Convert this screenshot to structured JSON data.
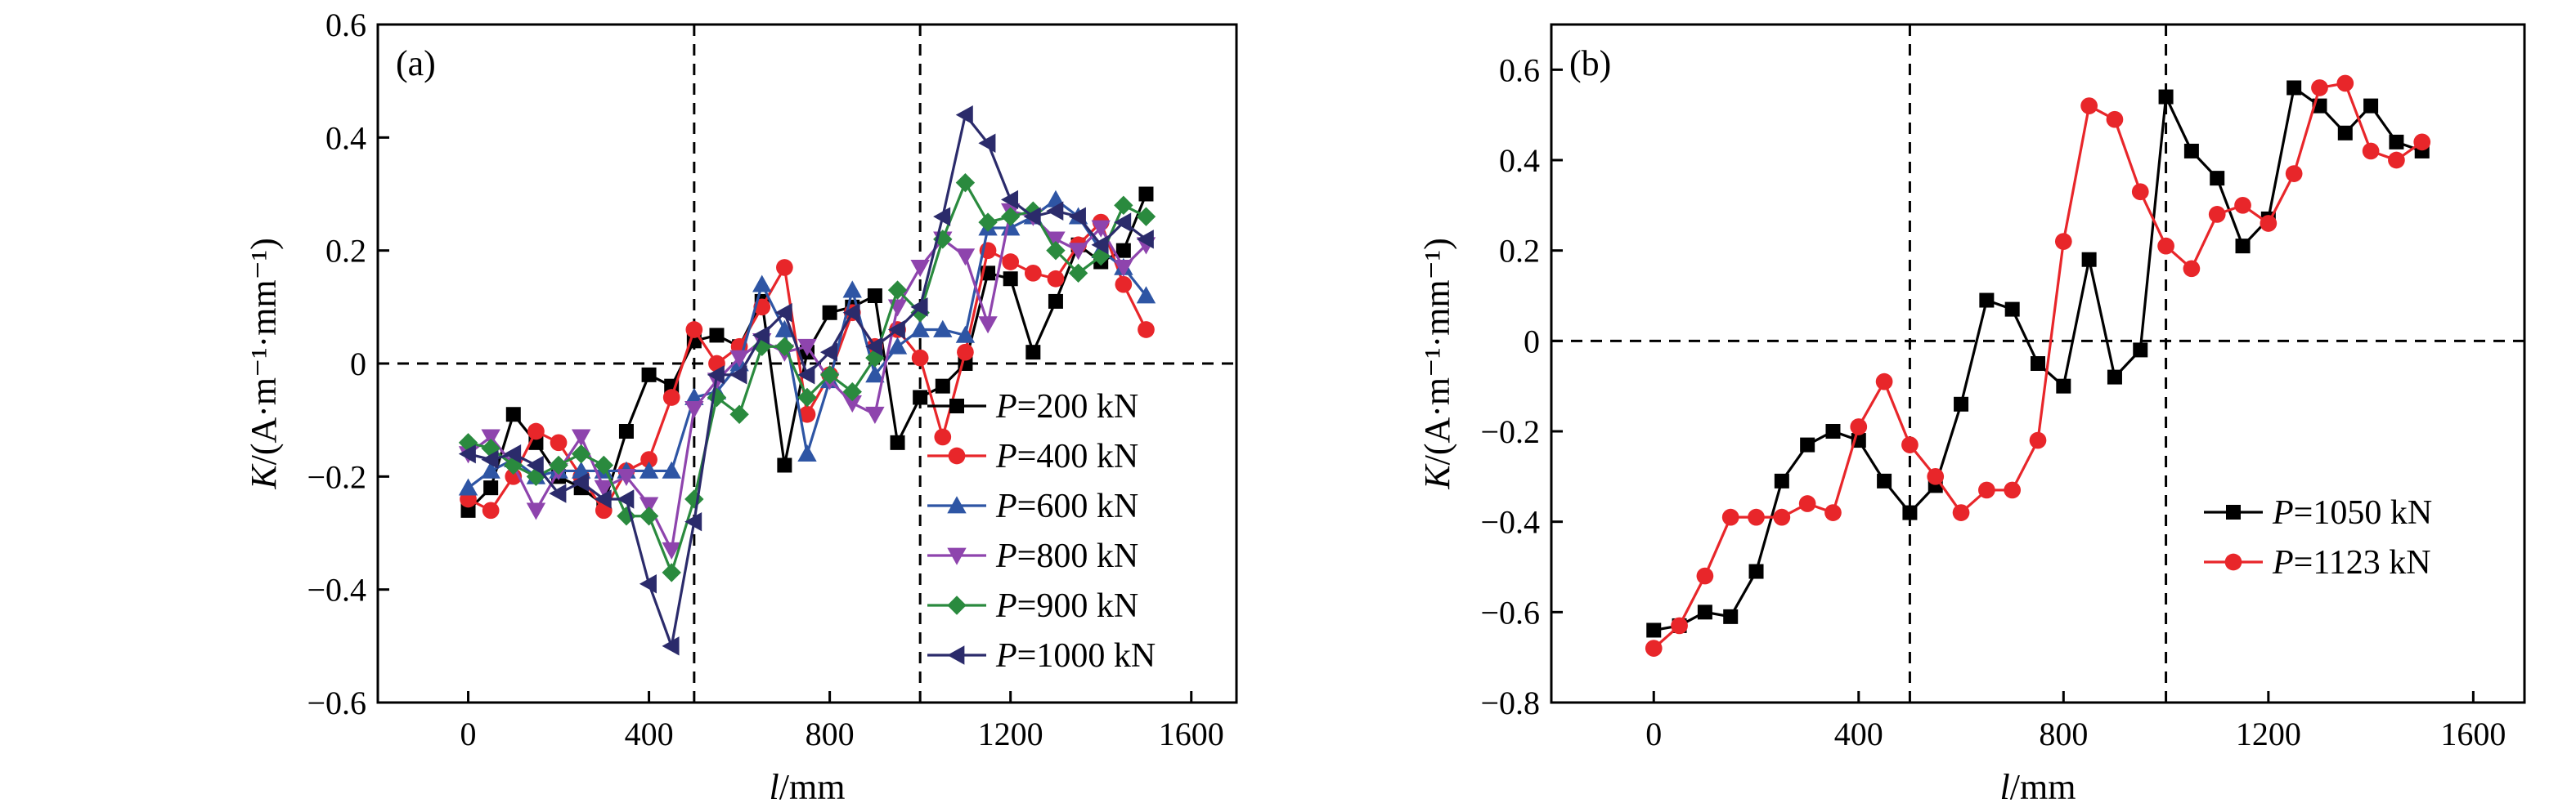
{
  "chart_data": [
    {
      "type": "line",
      "panel_label": "(a)",
      "xlabel_var": "l",
      "xlabel_unit": "/mm",
      "ylabel_var": "K",
      "ylabel_unit": "/(A·m⁻¹·mm⁻¹)",
      "xlim": [
        -200,
        1700
      ],
      "ylim": [
        -0.6,
        0.6
      ],
      "xticks": [
        0,
        400,
        800,
        1200,
        1600
      ],
      "xtick_labels": [
        "0",
        "400",
        "800",
        "1200",
        "1600"
      ],
      "yticks": [
        -0.6,
        -0.4,
        -0.2,
        0,
        0.2,
        0.4,
        0.6
      ],
      "ytick_labels": [
        "−0.6",
        "−0.4",
        "−0.2",
        "0",
        "0.2",
        "0.4",
        "0.6"
      ],
      "ref_lines_x": [
        500,
        1000
      ],
      "ref_lines_y": [
        0
      ],
      "legend_position": "bottom-right",
      "x": [
        0,
        50,
        100,
        150,
        200,
        250,
        300,
        350,
        400,
        450,
        500,
        550,
        600,
        650,
        700,
        750,
        800,
        850,
        900,
        950,
        1000,
        1050,
        1100,
        1150,
        1200,
        1250,
        1300,
        1350,
        1400,
        1450,
        1500
      ],
      "series": [
        {
          "name_var": "P",
          "name_rest": "=200 kN",
          "color": "#000000",
          "marker": "square",
          "values": [
            -0.26,
            -0.22,
            -0.09,
            -0.14,
            -0.2,
            -0.22,
            -0.25,
            -0.12,
            -0.02,
            -0.04,
            0.04,
            0.05,
            0.03,
            0.11,
            -0.18,
            0.02,
            0.09,
            0.1,
            0.12,
            -0.14,
            -0.06,
            -0.04,
            0.0,
            0.16,
            0.15,
            0.02,
            0.11,
            0.21,
            0.18,
            0.2,
            0.3
          ]
        },
        {
          "name_var": "P",
          "name_rest": "=400 kN",
          "color": "#e8262a",
          "marker": "circle",
          "values": [
            -0.24,
            -0.26,
            -0.2,
            -0.12,
            -0.14,
            -0.2,
            -0.26,
            -0.19,
            -0.17,
            -0.06,
            0.06,
            0.0,
            0.03,
            0.1,
            0.17,
            -0.09,
            -0.02,
            0.09,
            0.03,
            0.06,
            0.01,
            -0.13,
            0.02,
            0.2,
            0.18,
            0.16,
            0.15,
            0.21,
            0.25,
            0.14,
            0.06
          ]
        },
        {
          "name_var": "P",
          "name_rest": "=600 kN",
          "color": "#2e55a4",
          "marker": "triangle-up",
          "values": [
            -0.22,
            -0.19,
            -0.17,
            -0.2,
            -0.19,
            -0.19,
            -0.19,
            -0.19,
            -0.19,
            -0.19,
            -0.06,
            -0.05,
            0.0,
            0.14,
            0.06,
            -0.16,
            -0.03,
            0.13,
            -0.02,
            0.03,
            0.06,
            0.06,
            0.05,
            0.24,
            0.24,
            0.26,
            0.29,
            0.26,
            0.2,
            0.17,
            0.12
          ]
        },
        {
          "name_var": "P",
          "name_rest": "=800 kN",
          "color": "#8e44ad",
          "marker": "triangle-down",
          "values": [
            -0.16,
            -0.13,
            -0.18,
            -0.26,
            -0.19,
            -0.13,
            -0.22,
            -0.2,
            -0.25,
            -0.33,
            -0.08,
            -0.03,
            0.01,
            0.04,
            0.02,
            0.03,
            -0.03,
            -0.07,
            -0.09,
            0.1,
            0.17,
            0.22,
            0.19,
            0.07,
            0.27,
            0.26,
            0.22,
            0.2,
            0.24,
            0.17,
            0.21
          ]
        },
        {
          "name_var": "P",
          "name_rest": "=900 kN",
          "color": "#2a8a3e",
          "marker": "diamond",
          "values": [
            -0.14,
            -0.15,
            -0.18,
            -0.2,
            -0.18,
            -0.16,
            -0.18,
            -0.27,
            -0.27,
            -0.37,
            -0.24,
            -0.06,
            -0.09,
            0.03,
            0.03,
            -0.06,
            -0.02,
            -0.05,
            0.01,
            0.13,
            0.09,
            0.22,
            0.32,
            0.25,
            0.26,
            0.27,
            0.2,
            0.16,
            0.19,
            0.28,
            0.26
          ]
        },
        {
          "name_var": "P",
          "name_rest": "=1000 kN",
          "color": "#2b2b6b",
          "marker": "triangle-left",
          "values": [
            -0.16,
            -0.17,
            -0.16,
            -0.18,
            -0.23,
            -0.21,
            -0.24,
            -0.24,
            -0.39,
            -0.5,
            -0.28,
            -0.02,
            -0.02,
            0.05,
            0.09,
            -0.02,
            0.02,
            0.09,
            0.03,
            0.06,
            0.1,
            0.26,
            0.44,
            0.39,
            0.29,
            0.26,
            0.27,
            0.26,
            0.21,
            0.25,
            0.22
          ]
        }
      ]
    },
    {
      "type": "line",
      "panel_label": "(b)",
      "xlabel_var": "l",
      "xlabel_unit": "/mm",
      "ylabel_var": "K",
      "ylabel_unit": "/(A·m⁻¹·mm⁻¹)",
      "xlim": [
        -200,
        1700
      ],
      "ylim": [
        -0.8,
        0.7
      ],
      "xticks": [
        0,
        400,
        800,
        1200,
        1600
      ],
      "xtick_labels": [
        "0",
        "400",
        "800",
        "1200",
        "1600"
      ],
      "yticks": [
        -0.8,
        -0.6,
        -0.4,
        -0.2,
        0,
        0.2,
        0.4,
        0.6
      ],
      "ytick_labels": [
        "−0.8",
        "−0.6",
        "−0.4",
        "−0.2",
        "0",
        "0.2",
        "0.4",
        "0.6"
      ],
      "ref_lines_x": [
        500,
        1000
      ],
      "ref_lines_y": [
        0
      ],
      "legend_position": "bottom-right",
      "x": [
        0,
        50,
        100,
        150,
        200,
        250,
        300,
        350,
        400,
        450,
        500,
        550,
        600,
        650,
        700,
        750,
        800,
        850,
        900,
        950,
        1000,
        1050,
        1100,
        1150,
        1200,
        1250,
        1300,
        1350,
        1400,
        1450,
        1500
      ],
      "series": [
        {
          "name_var": "P",
          "name_rest": "=1050 kN",
          "color": "#000000",
          "marker": "square",
          "values": [
            -0.64,
            -0.63,
            -0.6,
            -0.61,
            -0.51,
            -0.31,
            -0.23,
            -0.2,
            -0.22,
            -0.31,
            -0.38,
            -0.32,
            -0.14,
            0.09,
            0.07,
            -0.05,
            -0.1,
            0.18,
            -0.08,
            -0.02,
            0.54,
            0.42,
            0.36,
            0.21,
            0.27,
            0.56,
            0.52,
            0.46,
            0.52,
            0.44,
            0.42
          ]
        },
        {
          "name_var": "P",
          "name_rest": "=1123 kN",
          "color": "#e8262a",
          "marker": "circle",
          "values": [
            -0.68,
            -0.63,
            -0.52,
            -0.39,
            -0.39,
            -0.39,
            -0.36,
            -0.38,
            -0.19,
            -0.09,
            -0.23,
            -0.3,
            -0.38,
            -0.33,
            -0.33,
            -0.22,
            0.22,
            0.52,
            0.49,
            0.33,
            0.21,
            0.16,
            0.28,
            0.3,
            0.26,
            0.37,
            0.56,
            0.57,
            0.42,
            0.4,
            0.44
          ]
        }
      ]
    }
  ]
}
